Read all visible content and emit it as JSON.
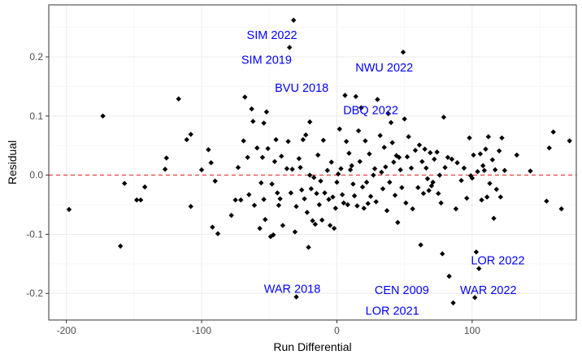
{
  "chart_data": {
    "type": "scatter",
    "xlabel": "Run Differential",
    "ylabel": "Residual",
    "xlim": [
      -213,
      177
    ],
    "ylim": [
      -0.245,
      0.288
    ],
    "x_ticks": [
      -200,
      -100,
      0,
      100
    ],
    "x_tick_labels": [
      "-200",
      "-100",
      "0",
      "100"
    ],
    "y_ticks": [
      -0.2,
      -0.1,
      0.0,
      0.1,
      0.2
    ],
    "y_tick_labels": [
      "-0.2",
      "-0.1",
      "0.0",
      "0.1",
      "0.2"
    ],
    "grid": true,
    "reference_line": {
      "y": 0.0,
      "style": "dashed",
      "color": "#e41a1c"
    },
    "point_color": "#000000",
    "annotation_color": "#0000ff",
    "points": [
      {
        "x": -198,
        "y": -0.058
      },
      {
        "x": -173,
        "y": 0.1
      },
      {
        "x": -160,
        "y": -0.12
      },
      {
        "x": -157,
        "y": -0.014
      },
      {
        "x": -148,
        "y": -0.042
      },
      {
        "x": -145,
        "y": -0.042
      },
      {
        "x": -142,
        "y": -0.02
      },
      {
        "x": -127,
        "y": 0.01
      },
      {
        "x": -126,
        "y": 0.029
      },
      {
        "x": -117,
        "y": 0.129
      },
      {
        "x": -111,
        "y": 0.06
      },
      {
        "x": -108,
        "y": 0.069
      },
      {
        "x": -108,
        "y": -0.053
      },
      {
        "x": -100,
        "y": 0.009
      },
      {
        "x": -95,
        "y": 0.043
      },
      {
        "x": -93,
        "y": 0.021
      },
      {
        "x": -92,
        "y": -0.088
      },
      {
        "x": -90,
        "y": -0.01
      },
      {
        "x": -88,
        "y": -0.099
      },
      {
        "x": -78,
        "y": -0.068
      },
      {
        "x": -75,
        "y": -0.042
      },
      {
        "x": -73,
        "y": 0.013
      },
      {
        "x": -71,
        "y": -0.042
      },
      {
        "x": -69,
        "y": 0.058
      },
      {
        "x": -68,
        "y": 0.132
      },
      {
        "x": -66,
        "y": 0.03
      },
      {
        "x": -65,
        "y": -0.033
      },
      {
        "x": -63,
        "y": 0.112
      },
      {
        "x": -62,
        "y": 0.091
      },
      {
        "x": -61,
        "y": -0.051
      },
      {
        "x": -59,
        "y": 0.046
      },
      {
        "x": -57,
        "y": -0.09
      },
      {
        "x": -56,
        "y": -0.013
      },
      {
        "x": -55,
        "y": 0.03
      },
      {
        "x": -54,
        "y": 0.088
      },
      {
        "x": -54,
        "y": -0.041
      },
      {
        "x": -53,
        "y": -0.075
      },
      {
        "x": -52,
        "y": 0.107
      },
      {
        "x": -51,
        "y": 0.045
      },
      {
        "x": -49,
        "y": -0.104
      },
      {
        "x": -48,
        "y": -0.015
      },
      {
        "x": -47,
        "y": -0.101
      },
      {
        "x": -46,
        "y": 0.023
      },
      {
        "x": -45,
        "y": 0.06
      },
      {
        "x": -44,
        "y": -0.03
      },
      {
        "x": -43,
        "y": -0.051
      },
      {
        "x": -42,
        "y": -0.04
      },
      {
        "x": -41,
        "y": 0.032
      },
      {
        "x": -40,
        "y": -0.085
      },
      {
        "x": -37,
        "y": 0.011
      },
      {
        "x": -36,
        "y": 0.057
      },
      {
        "x": -35,
        "y": 0.216
      },
      {
        "x": -34,
        "y": -0.03
      },
      {
        "x": -33,
        "y": 0.01
      },
      {
        "x": -32,
        "y": 0.262
      },
      {
        "x": -31,
        "y": -0.096
      },
      {
        "x": -30,
        "y": -0.053
      },
      {
        "x": -30,
        "y": -0.206
      },
      {
        "x": -28,
        "y": 0.028
      },
      {
        "x": -27,
        "y": 0.013
      },
      {
        "x": -26,
        "y": -0.025
      },
      {
        "x": -25,
        "y": 0.06
      },
      {
        "x": -24,
        "y": -0.04
      },
      {
        "x": -23,
        "y": 0.068
      },
      {
        "x": -22,
        "y": -0.063
      },
      {
        "x": -21,
        "y": -0.122
      },
      {
        "x": -20,
        "y": 0.0
      },
      {
        "x": -20,
        "y": 0.09
      },
      {
        "x": -19,
        "y": -0.023
      },
      {
        "x": -18,
        "y": -0.077
      },
      {
        "x": -17,
        "y": -0.004
      },
      {
        "x": -16,
        "y": -0.083
      },
      {
        "x": -15,
        "y": -0.031
      },
      {
        "x": -14,
        "y": 0.034
      },
      {
        "x": -13,
        "y": -0.05
      },
      {
        "x": -12,
        "y": -0.01
      },
      {
        "x": -11,
        "y": -0.076
      },
      {
        "x": -10,
        "y": 0.059
      },
      {
        "x": -9,
        "y": -0.03
      },
      {
        "x": -7,
        "y": 0.008
      },
      {
        "x": -6,
        "y": -0.041
      },
      {
        "x": -5,
        "y": -0.085
      },
      {
        "x": -4,
        "y": 0.022
      },
      {
        "x": -3,
        "y": -0.037
      },
      {
        "x": -2,
        "y": -0.09
      },
      {
        "x": -1,
        "y": -0.056
      },
      {
        "x": 0,
        "y": -0.012
      },
      {
        "x": 1,
        "y": 0.002
      },
      {
        "x": 2,
        "y": 0.078
      },
      {
        "x": 3,
        "y": 0.011
      },
      {
        "x": 4,
        "y": -0.033
      },
      {
        "x": 5,
        "y": -0.047
      },
      {
        "x": 6,
        "y": 0.135
      },
      {
        "x": 7,
        "y": 0.057
      },
      {
        "x": 8,
        "y": -0.05
      },
      {
        "x": 9,
        "y": 0.037
      },
      {
        "x": 10,
        "y": 0.009
      },
      {
        "x": 11,
        "y": 0.016
      },
      {
        "x": 12,
        "y": -0.015
      },
      {
        "x": 13,
        "y": -0.035
      },
      {
        "x": 14,
        "y": 0.133
      },
      {
        "x": 15,
        "y": -0.052
      },
      {
        "x": 16,
        "y": 0.075
      },
      {
        "x": 17,
        "y": 0.023
      },
      {
        "x": 18,
        "y": 0.114
      },
      {
        "x": 19,
        "y": -0.02
      },
      {
        "x": 20,
        "y": -0.056
      },
      {
        "x": 21,
        "y": 0.058
      },
      {
        "x": 22,
        "y": -0.012
      },
      {
        "x": 23,
        "y": -0.048
      },
      {
        "x": 24,
        "y": 0.036
      },
      {
        "x": 25,
        "y": -0.036
      },
      {
        "x": 27,
        "y": 0.0
      },
      {
        "x": 28,
        "y": 0.011
      },
      {
        "x": 29,
        "y": -0.045
      },
      {
        "x": 30,
        "y": 0.128
      },
      {
        "x": 32,
        "y": 0.067
      },
      {
        "x": 33,
        "y": 0.005
      },
      {
        "x": 34,
        "y": -0.023
      },
      {
        "x": 35,
        "y": 0.047
      },
      {
        "x": 36,
        "y": 0.014
      },
      {
        "x": 37,
        "y": -0.06
      },
      {
        "x": 38,
        "y": 0.104
      },
      {
        "x": 39,
        "y": -0.012
      },
      {
        "x": 40,
        "y": 0.089
      },
      {
        "x": 41,
        "y": 0.055
      },
      {
        "x": 42,
        "y": 0.022
      },
      {
        "x": 43,
        "y": -0.034
      },
      {
        "x": 44,
        "y": 0.033
      },
      {
        "x": 45,
        "y": -0.08
      },
      {
        "x": 46,
        "y": 0.03
      },
      {
        "x": 47,
        "y": 0.009
      },
      {
        "x": 48,
        "y": -0.021
      },
      {
        "x": 49,
        "y": 0.208
      },
      {
        "x": 50,
        "y": 0.095
      },
      {
        "x": 51,
        "y": -0.047
      },
      {
        "x": 52,
        "y": 0.031
      },
      {
        "x": 53,
        "y": 0.065
      },
      {
        "x": 55,
        "y": 0.012
      },
      {
        "x": 56,
        "y": -0.057
      },
      {
        "x": 58,
        "y": 0.042
      },
      {
        "x": 60,
        "y": -0.021
      },
      {
        "x": 61,
        "y": 0.051
      },
      {
        "x": 62,
        "y": -0.118
      },
      {
        "x": 63,
        "y": 0.023
      },
      {
        "x": 64,
        "y": -0.031
      },
      {
        "x": 65,
        "y": 0.044
      },
      {
        "x": 66,
        "y": 0.012
      },
      {
        "x": 67,
        "y": -0.006
      },
      {
        "x": 68,
        "y": -0.026
      },
      {
        "x": 69,
        "y": 0.038
      },
      {
        "x": 70,
        "y": -0.018
      },
      {
        "x": 71,
        "y": -0.012
      },
      {
        "x": 72,
        "y": 0.027
      },
      {
        "x": 74,
        "y": 0.039
      },
      {
        "x": 75,
        "y": -0.031
      },
      {
        "x": 76,
        "y": 0.0
      },
      {
        "x": 77,
        "y": -0.047
      },
      {
        "x": 78,
        "y": -0.133
      },
      {
        "x": 79,
        "y": 0.098
      },
      {
        "x": 80,
        "y": 0.013
      },
      {
        "x": 82,
        "y": 0.03
      },
      {
        "x": 83,
        "y": -0.171
      },
      {
        "x": 85,
        "y": 0.027
      },
      {
        "x": 86,
        "y": -0.216
      },
      {
        "x": 88,
        "y": -0.057
      },
      {
        "x": 89,
        "y": 0.021
      },
      {
        "x": 92,
        "y": -0.009
      },
      {
        "x": 94,
        "y": 0.012
      },
      {
        "x": 96,
        "y": -0.039
      },
      {
        "x": 98,
        "y": 0.063
      },
      {
        "x": 99,
        "y": -0.001
      },
      {
        "x": 100,
        "y": -0.005
      },
      {
        "x": 101,
        "y": 0.034
      },
      {
        "x": 102,
        "y": -0.207
      },
      {
        "x": 103,
        "y": -0.13
      },
      {
        "x": 104,
        "y": 0.006
      },
      {
        "x": 105,
        "y": -0.158
      },
      {
        "x": 106,
        "y": 0.036
      },
      {
        "x": 107,
        "y": -0.042
      },
      {
        "x": 108,
        "y": 0.016
      },
      {
        "x": 109,
        "y": 0.008
      },
      {
        "x": 110,
        "y": 0.044
      },
      {
        "x": 111,
        "y": -0.037
      },
      {
        "x": 112,
        "y": 0.065
      },
      {
        "x": 113,
        "y": -0.014
      },
      {
        "x": 115,
        "y": 0.026
      },
      {
        "x": 116,
        "y": -0.073
      },
      {
        "x": 117,
        "y": 0.009
      },
      {
        "x": 118,
        "y": -0.024
      },
      {
        "x": 120,
        "y": 0.041
      },
      {
        "x": 121,
        "y": -0.037
      },
      {
        "x": 122,
        "y": 0.063
      },
      {
        "x": 124,
        "y": 0.008
      },
      {
        "x": 133,
        "y": 0.034
      },
      {
        "x": 143,
        "y": 0.007
      },
      {
        "x": 155,
        "y": -0.044
      },
      {
        "x": 157,
        "y": 0.046
      },
      {
        "x": 160,
        "y": 0.073
      },
      {
        "x": 166,
        "y": -0.057
      },
      {
        "x": 172,
        "y": 0.058
      }
    ],
    "annotations": [
      {
        "text": "SIM 2022",
        "x": -48,
        "y": 0.237
      },
      {
        "text": "SIM 2019",
        "x": -52,
        "y": 0.195
      },
      {
        "text": "NWU 2022",
        "x": 35,
        "y": 0.182
      },
      {
        "text": "BVU 2018",
        "x": -26,
        "y": 0.148
      },
      {
        "text": "DBQ 2022",
        "x": 25,
        "y": 0.11
      },
      {
        "text": "WAR 2018",
        "x": -33,
        "y": -0.192
      },
      {
        "text": "CEN 2009",
        "x": 48,
        "y": -0.194
      },
      {
        "text": "WAR 2022",
        "x": 112,
        "y": -0.194
      },
      {
        "text": "LOR 2022",
        "x": 119,
        "y": -0.144
      },
      {
        "text": "LOR 2021",
        "x": 41,
        "y": -0.229
      }
    ]
  }
}
